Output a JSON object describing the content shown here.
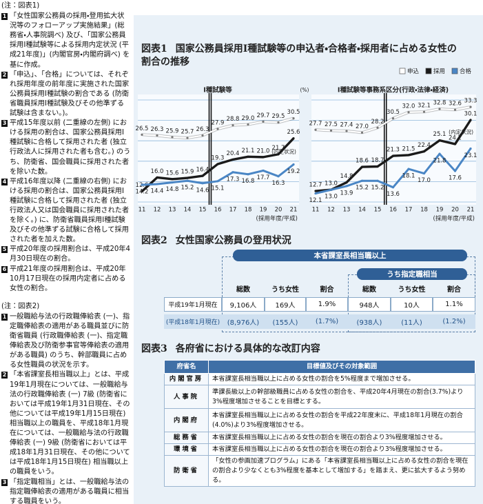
{
  "notes1": {
    "heading": "(注：図表1)",
    "items": [
      {
        "num": "1",
        "text": "「女性国家公務員の採用・登用拡大状況等のフォローアップ実施結果」(総務省・人事院調べ) 及び、「国家公務員採用Ⅰ種試験等による採用内定状況 (平成21年度)」(内閣官房・内閣府調べ) を基に作成。"
      },
      {
        "num": "2",
        "text": "「申込」、「合格」については、それぞれ採用年度の前年度に実施された国家公務員採用Ⅰ種試験の割合である (防衛省職員採用Ⅰ種試験及びその他準ずる試験は含まない。)。"
      },
      {
        "num": "3",
        "text": "平成15年度以前 (二重線の左側) における採用の割合は、国家公務員採用Ⅰ種試験に合格して採用された者 (独立行政法人に採用された者も含む。) のうち、防衛省、国会職員に採用された者を除いた数。"
      },
      {
        "num": "4",
        "text": "平成16年度以降 (二重線の右側) における採用の割合は、国家公務員採用Ⅰ種試験に合格して採用された者 (独立行政法人又は国会職員に採用された者を除く。) に、防衛省職員採用Ⅰ種試験及びその他準ずる試験に合格して採用された者を加えた数。"
      },
      {
        "num": "5",
        "text": "平成20年度の採用割合は、平成20年4月30日現在の割合。"
      },
      {
        "num": "6",
        "text": "平成21年度の採用割合は、平成20年10月17日現在の採用内定者に占める女性の割合。"
      }
    ]
  },
  "notes2": {
    "heading": "(注：図表2)",
    "items": [
      {
        "num": "1",
        "text": "一般職給与法の行政職俸給表 (一)、指定職俸給表の適用がある職員並びに防衛省職員 (行政職俸給表 (一)、指定職俸給表及び防衛参事官等俸給表の適用がある職員) のうち、幹部職員に占める女性職員の状況を示す。"
      },
      {
        "num": "2",
        "text": "「本省課室長相当職以上」とは、平成19年1月現在については、一般職給与法の行政職俸給表 (一) 7級 (防衛省においては平成19年1月31日現在、その他については平成19年1月15日現在) 相当職以上の職員を、平成18年1月現在については、一般職給与法の行政職俸給表 (一) 9級 (防衛省においては平成18年1月31日現在、その他については平成18年1月15日現在) 相当職以上の職員をいう。"
      },
      {
        "num": "3",
        "text": "「指定職相当」とは、一般職給与法の指定職俸給表の適用がある職員に相当する職員をいう。"
      }
    ]
  },
  "figure1": {
    "label": "図表1",
    "title": "国家公務員採用Ⅰ種試験等の申込者・合格者・採用者に占める女性の割合の推移"
  },
  "chart_data": [
    {
      "type": "line",
      "title": "Ⅰ種試験等",
      "y_unit": "(%)",
      "x_label": "(採用年度/平成)",
      "annotation": "(内定状況)",
      "categories": [
        "11",
        "12",
        "13",
        "14",
        "15",
        "16",
        "17",
        "18",
        "19",
        "20",
        "21"
      ],
      "ylim": [
        10,
        35
      ],
      "yticks": [
        10,
        15,
        20,
        25,
        30,
        35
      ],
      "grid": true,
      "series": [
        {
          "name": "申込",
          "color": "#ffffff",
          "values": [
            26.5,
            26.3,
            25.9,
            25.7,
            26.3,
            27.9,
            28.8,
            29.0,
            29.7,
            29.5,
            30.5
          ],
          "value_labels": [
            "26.5",
            "26.3",
            "25.9",
            "25.7",
            "26.3",
            "27.9",
            "28.8",
            "29.0",
            "29.7",
            "29.5",
            "30.5"
          ]
        },
        {
          "name": "採用",
          "color": "#1a1a1a",
          "values": [
            12.6,
            16.0,
            15.6,
            15.9,
            16.4,
            19.3,
            20.4,
            21.1,
            21.0,
            21.7,
            25.6
          ],
          "value_labels": [
            "12.6",
            "16.0",
            "15.6",
            "15.9",
            "16.4",
            "19.3",
            "20.4",
            "21.1",
            "21.0",
            "21.7",
            "25.6"
          ]
        },
        {
          "name": "合格",
          "color": "#4a86c5",
          "values": [
            14.2,
            14.4,
            14.8,
            15.2,
            14.6,
            15.1,
            17.3,
            16.8,
            17.7,
            16.3,
            19.2
          ],
          "value_labels": [
            "14.2",
            "14.4",
            "14.8",
            "15.2",
            "14.6",
            "15.1",
            "17.3",
            "16.8",
            "17.7",
            "16.3",
            "19.2"
          ]
        }
      ]
    },
    {
      "type": "line",
      "title": "Ⅰ種試験等事務系区分(行政・法律・経済)",
      "x_label": "(採用年度/平成)",
      "annotation": "(内定状況)",
      "categories": [
        "11",
        "12",
        "13",
        "14",
        "15",
        "16",
        "17",
        "18",
        "19",
        "20",
        "21"
      ],
      "ylim": [
        10,
        35
      ],
      "yticks": [
        10,
        15,
        20,
        25,
        30,
        35
      ],
      "grid": true,
      "series": [
        {
          "color": "#ffffff",
          "values": [
            27.7,
            27.5,
            27.4,
            27.0,
            28.2,
            30.5,
            32.0,
            32.1,
            32.8,
            32.6,
            33.3
          ],
          "value_labels": [
            "27.7",
            "27.5",
            "27.4",
            "27.0",
            "28.2",
            "30.5",
            "32.0",
            "32.1",
            "32.8",
            "32.6",
            "33.3"
          ]
        },
        {
          "color": "#1a1a1a",
          "values": [
            12.7,
            13.0,
            14.8,
            18.6,
            18.7,
            21.3,
            21.5,
            22.4,
            25.1,
            24.2,
            30.1
          ],
          "value_labels": [
            "12.7",
            "13.0",
            "14.8",
            "18.6",
            "18.7",
            "21.3",
            "21.5",
            "22.4",
            "25.1",
            "24.2",
            "30.1"
          ]
        },
        {
          "color": "#4a86c5",
          "values": [
            12.1,
            13.0,
            13.9,
            15.2,
            15.2,
            13.6,
            18.1,
            17.0,
            21.8,
            17.6,
            23.1
          ],
          "value_labels": [
            "12.1",
            "13.0",
            "13.9",
            "15.2",
            "15.2",
            "13.6",
            "18.1",
            "17.0",
            "21.8",
            "17.6",
            "23.1"
          ]
        }
      ]
    }
  ],
  "figure2": {
    "label": "図表2",
    "title": "女性国家公務員の登用状況",
    "group": "本省課室長相当職以上",
    "subgroup": "うち指定職相当",
    "columns": [
      "総数",
      "うち女性",
      "割合",
      "総数",
      "うち女性",
      "割合"
    ],
    "rows": [
      {
        "label": "平成19年1月現在",
        "cells": [
          "9,106人",
          "169人",
          "1.9%",
          "948人",
          "10人",
          "1.1%"
        ]
      },
      {
        "label": "(平成18年1月現在)",
        "cells": [
          "(8,976人)",
          "(155人)",
          "(1.7%)",
          "(938人)",
          "(11人)",
          "(1.2%)"
        ]
      }
    ]
  },
  "figure3": {
    "label": "図表3",
    "title": "各府省における具体的な改訂内容",
    "columns": [
      "府省名",
      "目標値及びその対象範囲"
    ],
    "rows": [
      [
        "内閣官房",
        "本省課室長相当職以上に占める女性の割合を5%程度まで増加させる。"
      ],
      [
        "人事院",
        "準課長級以上の幹部級職員に占める女性の割合を、平成20年4月現在の割合(3.7%)より3%程度増加させることを目標とする。"
      ],
      [
        "内閣府",
        "本省課室長相当職以上に占める女性の割合を平成22年度末に、平成18年1月現在の割合(4.0%)より3%程度増加させる。"
      ],
      [
        "総務省",
        "本省課室長相当職以上に占める女性の割合を現在の割合より3%程度増加させる。"
      ],
      [
        "環境省",
        "本省課室長相当職以上に占める女性の割合を現在の割合より3%程度増加させる。"
      ],
      [
        "防衛省",
        "「女性の参画加速プログラム」にある「本省課室長相当職以上に占める女性の割合を現在の割合より少なくとも3%程度を基本として増加する」を踏まえ、更に拡大するよう努める。"
      ]
    ]
  }
}
